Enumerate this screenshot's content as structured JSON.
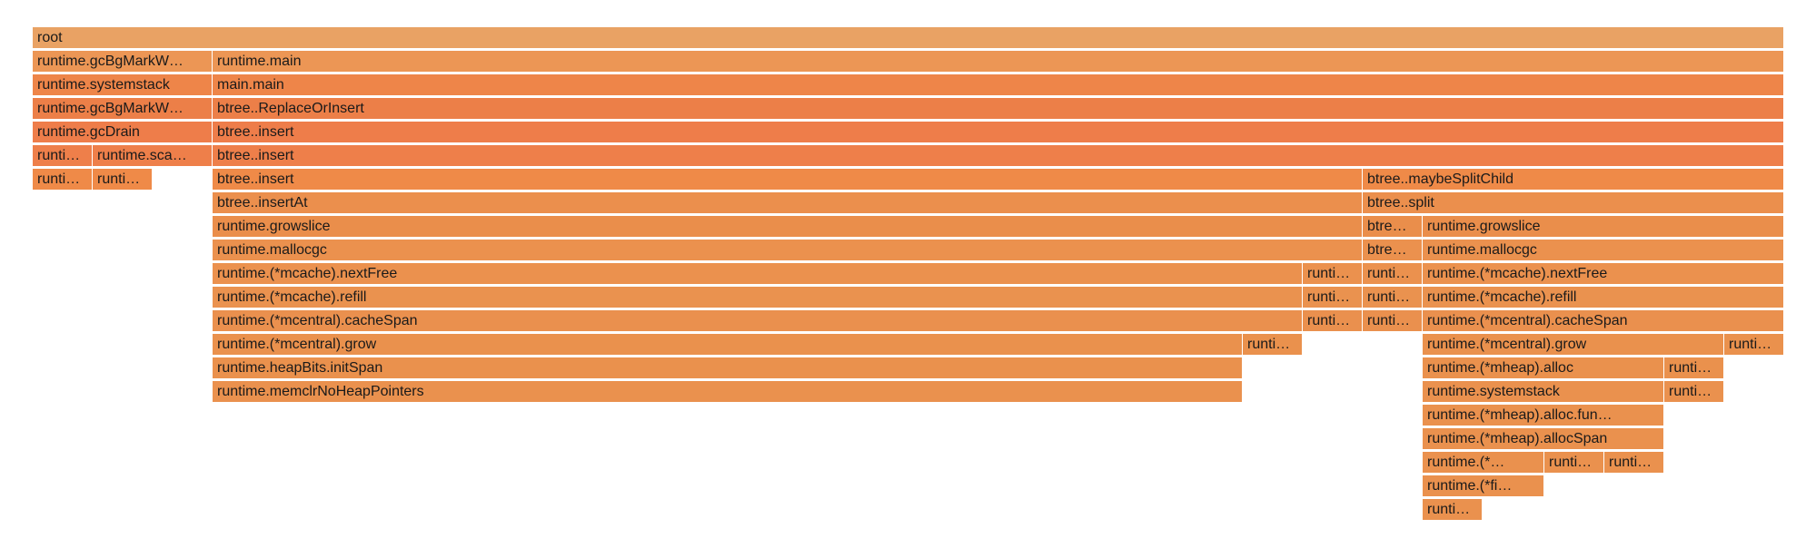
{
  "colors": {
    "background": "#ffffff",
    "level_0": "#E9A264",
    "level_1": "#EC9655",
    "level_2": "#EE8549",
    "level_3": "#EC7F48",
    "level_4": "#EE7D4A",
    "level_5": "#EE7F4A",
    "level_6": "#EF8A48",
    "level_7": "#EB8F4D",
    "level_8": "#EA8E4B",
    "level_9": "#EB914E",
    "level_10": "#EB914E",
    "level_11": "#EA924F",
    "level_12": "#EA904E",
    "level_13": "#EA914D",
    "level_14": "#EA914D",
    "level_15": "#EA914E",
    "level_16": "#EA914E",
    "level_17": "#EA914E",
    "level_18": "#EA914E",
    "level_19": "#EA914E",
    "level_20": "#EA914E"
  },
  "frames": [
    {
      "id": "root",
      "label": "root",
      "depth": 0
    },
    {
      "id": "gcBgMarkWorker-a",
      "label": "runtime.gcBgMarkW…",
      "depth": 1
    },
    {
      "id": "runtime-main",
      "label": "runtime.main",
      "depth": 1
    },
    {
      "id": "systemstack-a",
      "label": "runtime.systemstack",
      "depth": 2
    },
    {
      "id": "main-main",
      "label": "main.main",
      "depth": 2
    },
    {
      "id": "gcBgMarkWorker-b",
      "label": "runtime.gcBgMarkW…",
      "depth": 3
    },
    {
      "id": "btree-ReplaceOrInsert",
      "label": "btree..ReplaceOrInsert",
      "depth": 3
    },
    {
      "id": "gcDrain",
      "label": "runtime.gcDrain",
      "depth": 4
    },
    {
      "id": "btree-insert-1",
      "label": "btree..insert",
      "depth": 4
    },
    {
      "id": "runti-a",
      "label": "runti…",
      "depth": 5
    },
    {
      "id": "runtime-sca",
      "label": "runtime.sca…",
      "depth": 5
    },
    {
      "id": "btree-insert-2",
      "label": "btree..insert",
      "depth": 5
    },
    {
      "id": "runti-b",
      "label": "runti…",
      "depth": 6
    },
    {
      "id": "runti-c",
      "label": "runti…",
      "depth": 6
    },
    {
      "id": "btree-insert-3",
      "label": "btree..insert",
      "depth": 6
    },
    {
      "id": "btree-maybeSplitChild",
      "label": "btree..maybeSplitChild",
      "depth": 6
    },
    {
      "id": "btree-insertAt",
      "label": "btree..insertAt",
      "depth": 7
    },
    {
      "id": "btree-split",
      "label": "btree..split",
      "depth": 7
    },
    {
      "id": "growslice-a",
      "label": "runtime.growslice",
      "depth": 8
    },
    {
      "id": "btre-a",
      "label": "btre…",
      "depth": 8
    },
    {
      "id": "growslice-b",
      "label": "runtime.growslice",
      "depth": 8
    },
    {
      "id": "mallocgc-a",
      "label": "runtime.mallocgc",
      "depth": 9
    },
    {
      "id": "btre-b",
      "label": "btre…",
      "depth": 9
    },
    {
      "id": "mallocgc-b",
      "label": "runtime.mallocgc",
      "depth": 9
    },
    {
      "id": "nextFree-a",
      "label": "runtime.(*mcache).nextFree",
      "depth": 10
    },
    {
      "id": "runti-d",
      "label": "runti…",
      "depth": 10
    },
    {
      "id": "runti-e",
      "label": "runti…",
      "depth": 10
    },
    {
      "id": "nextFree-b",
      "label": "runtime.(*mcache).nextFree",
      "depth": 10
    },
    {
      "id": "refill-a",
      "label": "runtime.(*mcache).refill",
      "depth": 11
    },
    {
      "id": "runti-f",
      "label": "runti…",
      "depth": 11
    },
    {
      "id": "runti-g",
      "label": "runti…",
      "depth": 11
    },
    {
      "id": "refill-b",
      "label": "runtime.(*mcache).refill",
      "depth": 11
    },
    {
      "id": "cacheSpan-a",
      "label": "runtime.(*mcentral).cacheSpan",
      "depth": 12
    },
    {
      "id": "runti-h",
      "label": "runti…",
      "depth": 12
    },
    {
      "id": "runti-i",
      "label": "runti…",
      "depth": 12
    },
    {
      "id": "cacheSpan-b",
      "label": "runtime.(*mcentral).cacheSpan",
      "depth": 12
    },
    {
      "id": "grow-a",
      "label": "runtime.(*mcentral).grow",
      "depth": 13
    },
    {
      "id": "runti-j",
      "label": "runti…",
      "depth": 13
    },
    {
      "id": "grow-b",
      "label": "runtime.(*mcentral).grow",
      "depth": 13
    },
    {
      "id": "runti-k",
      "label": "runti…",
      "depth": 13
    },
    {
      "id": "initSpan",
      "label": "runtime.heapBits.initSpan",
      "depth": 14
    },
    {
      "id": "mheap-alloc",
      "label": "runtime.(*mheap).alloc",
      "depth": 14
    },
    {
      "id": "runti-l",
      "label": "runti…",
      "depth": 14
    },
    {
      "id": "memclr",
      "label": "runtime.memclrNoHeapPointers",
      "depth": 15
    },
    {
      "id": "systemstack-b",
      "label": "runtime.systemstack",
      "depth": 15
    },
    {
      "id": "runti-m",
      "label": "runti…",
      "depth": 15
    },
    {
      "id": "mheap-alloc-fun",
      "label": "runtime.(*mheap).alloc.fun…",
      "depth": 16
    },
    {
      "id": "mheap-allocSpan",
      "label": "runtime.(*mheap).allocSpan",
      "depth": 17
    },
    {
      "id": "runtime-star",
      "label": "runtime.(*…",
      "depth": 18
    },
    {
      "id": "runti-n",
      "label": "runti…",
      "depth": 18
    },
    {
      "id": "runti-o",
      "label": "runti…",
      "depth": 18
    },
    {
      "id": "runtime-fi",
      "label": "runtime.(*fi…",
      "depth": 19
    },
    {
      "id": "runti-p",
      "label": "runti…",
      "depth": 20
    }
  ]
}
